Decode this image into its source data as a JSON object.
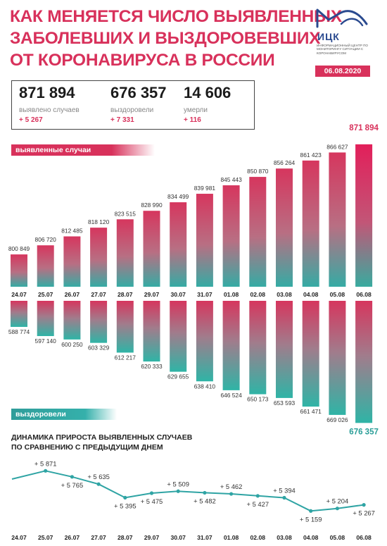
{
  "title": {
    "line1": "КАК МЕНЯЕТСЯ ЧИСЛО ВЫЯВЛЕННЫХ",
    "line2": "ЗАБОЛЕВШИХ И ВЫЗДОРОВЕВШИХ",
    "line3": "ОТ КОРОНАВИРУСА В РОССИИ"
  },
  "logo": {
    "name": "ИЦК",
    "subtitle": "Информационный центр по мониторингу ситуации с коронавирусом"
  },
  "date": "06.08.2020",
  "stats": {
    "detected": {
      "value": "871 894",
      "label": "выявлено случаев",
      "delta": "+ 5 267"
    },
    "recovered": {
      "value": "676 357",
      "label": "выздоровели",
      "delta": "+ 7 331"
    },
    "died": {
      "value": "14 606",
      "label": "умерли",
      "delta": "+ 116"
    }
  },
  "section_labels": {
    "detected": "выявленные случаи",
    "recovered": "выздоровели"
  },
  "trend_title": {
    "line1": "ДИНАМИКА ПРИРОСТА ВЫЯВЛЕННЫХ СЛУЧАЕВ",
    "line2": "ПО СРАВНЕНИЮ С ПРЕДЫДУЩИМ ДНЕМ"
  },
  "colors": {
    "accent": "#d8315b",
    "recovered": "#35b0ab",
    "bar_top_pink": "#d8315b",
    "bar_mid": "#b76a7f",
    "bar_teal": "#2fb4a6",
    "trend_line": "#2fa4a4"
  },
  "chart_data": [
    {
      "type": "bar",
      "categories": [
        "24.07",
        "25.07",
        "26.07",
        "27.07",
        "28.07",
        "29.07",
        "30.07",
        "31.07",
        "01.08",
        "02.08",
        "03.08",
        "04.08",
        "05.08",
        "06.08"
      ],
      "series": [
        {
          "name": "выявленные случаи",
          "values": [
            800849,
            806720,
            812485,
            818120,
            823515,
            828990,
            834499,
            839981,
            845443,
            850870,
            856264,
            861423,
            866627,
            871894
          ]
        }
      ],
      "labels": [
        "800 849",
        "806 720",
        "812 485",
        "818 120",
        "823 515",
        "828 990",
        "834 499",
        "839 981",
        "845 443",
        "850 870",
        "856 264",
        "861 423",
        "866 627",
        "871 894"
      ],
      "ylim": [
        780000,
        875000
      ]
    },
    {
      "type": "bar",
      "categories": [
        "24.07",
        "25.07",
        "26.07",
        "27.07",
        "28.07",
        "29.07",
        "30.07",
        "31.07",
        "01.08",
        "02.08",
        "03.08",
        "04.08",
        "05.08",
        "06.08"
      ],
      "series": [
        {
          "name": "выздоровели",
          "values": [
            588774,
            597140,
            600250,
            603329,
            612217,
            620333,
            629655,
            638410,
            646524,
            650173,
            653593,
            661471,
            669026,
            676357
          ]
        }
      ],
      "labels": [
        "588 774",
        "597 140",
        "600 250",
        "603 329",
        "612 217",
        "620 333",
        "629 655",
        "638 410",
        "646 524",
        "650 173",
        "653 593",
        "661 471",
        "669 026",
        "676 357"
      ],
      "ylim": [
        565000,
        680000
      ],
      "orientation": "downward"
    },
    {
      "type": "line",
      "x": [
        "24.07",
        "25.07",
        "26.07",
        "27.07",
        "28.07",
        "29.07",
        "30.07",
        "31.07",
        "01.08",
        "02.08",
        "03.08",
        "04.08",
        "05.08",
        "06.08"
      ],
      "series": [
        {
          "values": [
            null,
            5871,
            5765,
            5635,
            5395,
            5475,
            5509,
            5482,
            5462,
            5427,
            5394,
            5159,
            5204,
            5267
          ]
        }
      ],
      "labels": [
        "",
        "+ 5 871",
        "+ 5 765",
        "+ 5 635",
        "+ 5 395",
        "+ 5 475",
        "+ 5 509",
        "+ 5 482",
        "+ 5 462",
        "+ 5 427",
        "+ 5 394",
        "+ 5 159",
        "+ 5 204",
        "+ 5 267"
      ],
      "ylim": [
        5100,
        5950
      ]
    }
  ]
}
